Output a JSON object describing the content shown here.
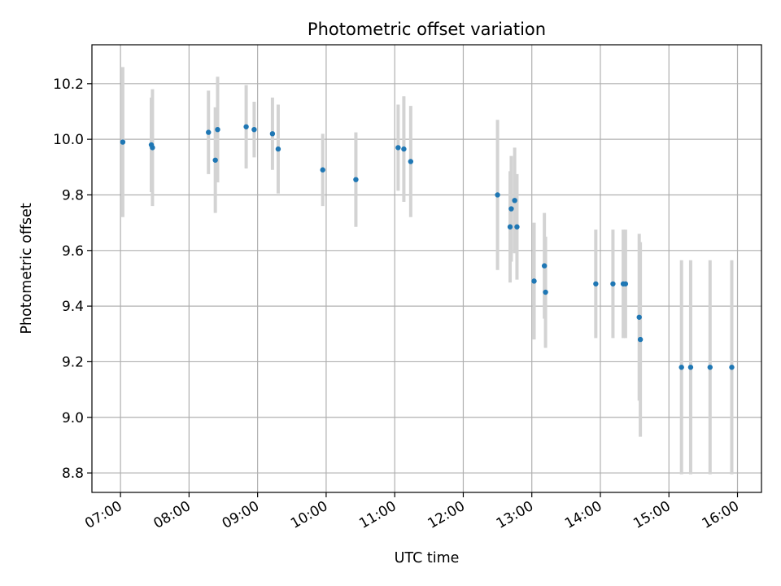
{
  "chart_data": {
    "type": "scatter",
    "title": "Photometric offset variation",
    "xlabel": "UTC time",
    "ylabel": "Photometric offset",
    "x_ticks": [
      "07:00",
      "08:00",
      "09:00",
      "10:00",
      "11:00",
      "12:00",
      "13:00",
      "14:00",
      "15:00",
      "16:00"
    ],
    "y_ticks": [
      "8.8",
      "9.0",
      "9.2",
      "9.4",
      "9.6",
      "9.8",
      "10.0",
      "10.2"
    ],
    "xlim": [
      "06:35",
      "16:21"
    ],
    "ylim": [
      8.73,
      10.34
    ],
    "grid": true,
    "marker_color": "#1f77b4",
    "errorbar_color": "#d3d3d3",
    "points": [
      {
        "t": "07:02",
        "y": 9.99,
        "err": 0.27
      },
      {
        "t": "07:27",
        "y": 9.98,
        "err": 0.17
      },
      {
        "t": "07:28",
        "y": 9.97,
        "err": 0.21
      },
      {
        "t": "08:17",
        "y": 10.025,
        "err": 0.15
      },
      {
        "t": "08:23",
        "y": 9.925,
        "err": 0.19
      },
      {
        "t": "08:25",
        "y": 10.035,
        "err": 0.19
      },
      {
        "t": "08:50",
        "y": 10.045,
        "err": 0.15
      },
      {
        "t": "08:57",
        "y": 10.035,
        "err": 0.1
      },
      {
        "t": "09:13",
        "y": 10.02,
        "err": 0.13
      },
      {
        "t": "09:18",
        "y": 9.965,
        "err": 0.16
      },
      {
        "t": "09:57",
        "y": 9.89,
        "err": 0.13
      },
      {
        "t": "10:26",
        "y": 9.855,
        "err": 0.17
      },
      {
        "t": "11:03",
        "y": 9.97,
        "err": 0.155
      },
      {
        "t": "11:08",
        "y": 9.965,
        "err": 0.19
      },
      {
        "t": "11:14",
        "y": 9.92,
        "err": 0.2
      },
      {
        "t": "12:30",
        "y": 9.8,
        "err": 0.27
      },
      {
        "t": "12:41",
        "y": 9.685,
        "err": 0.2
      },
      {
        "t": "12:42",
        "y": 9.75,
        "err": 0.19
      },
      {
        "t": "12:45",
        "y": 9.78,
        "err": 0.19
      },
      {
        "t": "12:47",
        "y": 9.685,
        "err": 0.19
      },
      {
        "t": "13:02",
        "y": 9.49,
        "err": 0.21
      },
      {
        "t": "13:11",
        "y": 9.545,
        "err": 0.19
      },
      {
        "t": "13:12",
        "y": 9.45,
        "err": 0.2
      },
      {
        "t": "13:56",
        "y": 9.48,
        "err": 0.195
      },
      {
        "t": "14:11",
        "y": 9.48,
        "err": 0.195
      },
      {
        "t": "14:20",
        "y": 9.48,
        "err": 0.195
      },
      {
        "t": "14:22",
        "y": 9.48,
        "err": 0.195
      },
      {
        "t": "14:34",
        "y": 9.36,
        "err": 0.3
      },
      {
        "t": "14:35",
        "y": 9.28,
        "err": 0.35
      },
      {
        "t": "15:11",
        "y": 9.18,
        "err": 0.385
      },
      {
        "t": "15:19",
        "y": 9.18,
        "err": 0.385
      },
      {
        "t": "15:36",
        "y": 9.18,
        "err": 0.385
      },
      {
        "t": "15:55",
        "y": 9.18,
        "err": 0.385
      }
    ]
  }
}
